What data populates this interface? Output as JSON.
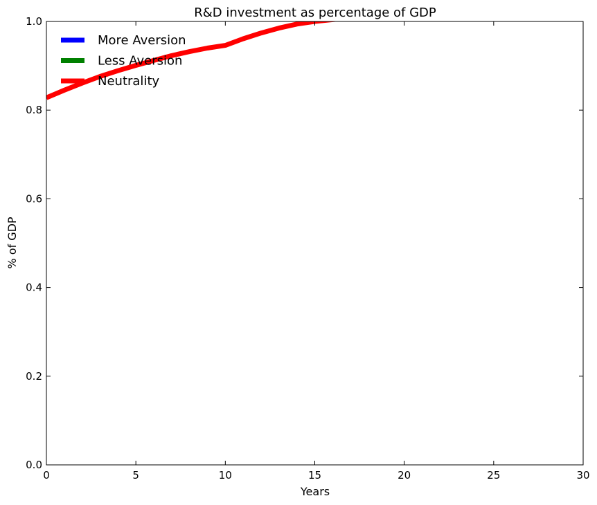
{
  "chart_data": {
    "type": "line",
    "title": "R&D investment as percentage of  GDP",
    "xlabel": "Years",
    "ylabel": "% of GDP",
    "xlim": [
      0,
      30
    ],
    "ylim": [
      0.0,
      1.0
    ],
    "xticks": [
      "0",
      "5",
      "10",
      "15",
      "20",
      "25",
      "30"
    ],
    "yticks": [
      "0.0",
      "0.2",
      "0.4",
      "0.6",
      "0.8",
      "1.0"
    ],
    "grid": false,
    "legend_position": "top-left",
    "series": [
      {
        "name": "More Aversion",
        "color": "#0000ff",
        "x": [],
        "y": []
      },
      {
        "name": "Less Aversion",
        "color": "#008000",
        "x": [],
        "y": []
      },
      {
        "name": "Neutrality",
        "color": "#ff0000",
        "x": [
          0,
          1,
          2,
          3,
          4,
          5,
          6,
          7,
          8,
          9,
          10,
          11,
          12,
          13,
          14,
          15,
          16,
          17
        ],
        "y": [
          0.828,
          0.845,
          0.861,
          0.876,
          0.889,
          0.901,
          0.912,
          0.923,
          0.932,
          0.94,
          0.946,
          0.961,
          0.974,
          0.985,
          0.994,
          1.0,
          1.004,
          1.008
        ]
      }
    ]
  }
}
